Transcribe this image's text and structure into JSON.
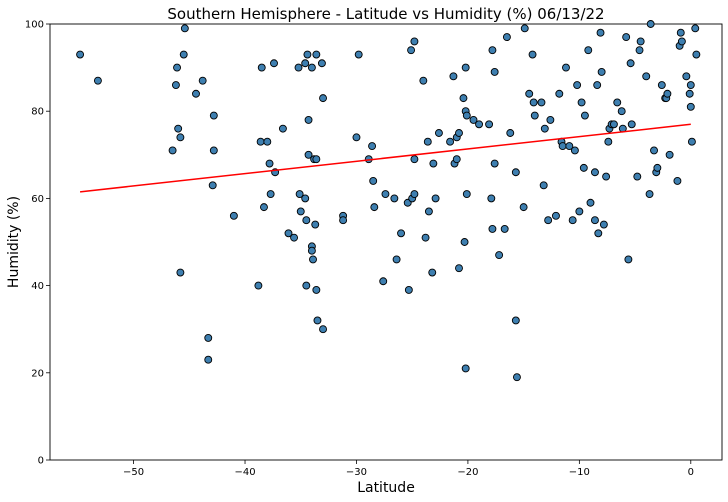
{
  "chart_data": {
    "type": "scatter",
    "title": "Southern Hemisphere - Latitude vs Humidity (%) 06/13/22",
    "xlabel": "Latitude",
    "ylabel": "Humidity (%)",
    "xlim": [
      -57.5,
      2.8
    ],
    "ylim": [
      0,
      100
    ],
    "xticks": [
      -50,
      -40,
      -30,
      -20,
      -10,
      0
    ],
    "yticks": [
      0,
      20,
      40,
      60,
      80,
      100
    ],
    "x_tick_labels": [
      "−50",
      "−40",
      "−30",
      "−20",
      "−10",
      "0"
    ],
    "y_tick_labels": [
      "0",
      "20",
      "40",
      "60",
      "80",
      "100"
    ],
    "grid": false,
    "colors": {
      "marker_fill": "#3e7fb0",
      "marker_edge": "#000000",
      "regression_line": "#ff0000"
    },
    "regression": {
      "x": [
        -54.8,
        0
      ],
      "y": [
        61.5,
        77.0
      ]
    },
    "series": [
      {
        "points": [
          [
            -54.8,
            93
          ],
          [
            -53.2,
            87
          ],
          [
            -46.5,
            71
          ],
          [
            -46.2,
            86
          ],
          [
            -46.1,
            90
          ],
          [
            -46.0,
            76
          ],
          [
            -45.8,
            74
          ],
          [
            -45.8,
            43
          ],
          [
            -45.5,
            93
          ],
          [
            -45.4,
            99
          ],
          [
            -44.4,
            84
          ],
          [
            -43.8,
            87
          ],
          [
            -43.3,
            28
          ],
          [
            -43.3,
            23
          ],
          [
            -42.9,
            63
          ],
          [
            -42.8,
            71
          ],
          [
            -42.8,
            79
          ],
          [
            -41.0,
            56
          ],
          [
            -38.8,
            40
          ],
          [
            -38.6,
            73
          ],
          [
            -38.5,
            90
          ],
          [
            -38.3,
            58
          ],
          [
            -38.0,
            73
          ],
          [
            -37.8,
            68
          ],
          [
            -37.7,
            61
          ],
          [
            -37.4,
            91
          ],
          [
            -37.3,
            66
          ],
          [
            -36.6,
            76
          ],
          [
            -36.1,
            52
          ],
          [
            -35.6,
            51
          ],
          [
            -35.2,
            90
          ],
          [
            -35.1,
            61
          ],
          [
            -35.0,
            57
          ],
          [
            -34.6,
            91
          ],
          [
            -34.6,
            60
          ],
          [
            -34.5,
            55
          ],
          [
            -34.5,
            40
          ],
          [
            -34.4,
            93
          ],
          [
            -34.3,
            78
          ],
          [
            -34.3,
            70
          ],
          [
            -34.0,
            90
          ],
          [
            -34.0,
            49
          ],
          [
            -34.0,
            48
          ],
          [
            -33.9,
            46
          ],
          [
            -33.8,
            69
          ],
          [
            -33.7,
            54
          ],
          [
            -33.6,
            69
          ],
          [
            -33.6,
            93
          ],
          [
            -33.6,
            39
          ],
          [
            -33.5,
            32
          ],
          [
            -33.1,
            91
          ],
          [
            -33.0,
            83
          ],
          [
            -33.0,
            30
          ],
          [
            -31.2,
            56
          ],
          [
            -31.2,
            55
          ],
          [
            -30.0,
            74
          ],
          [
            -29.8,
            93
          ],
          [
            -28.9,
            69
          ],
          [
            -28.6,
            72
          ],
          [
            -28.5,
            64
          ],
          [
            -28.4,
            58
          ],
          [
            -27.6,
            41
          ],
          [
            -27.4,
            61
          ],
          [
            -26.6,
            60
          ],
          [
            -26.4,
            46
          ],
          [
            -26.0,
            52
          ],
          [
            -25.4,
            59
          ],
          [
            -25.3,
            39
          ],
          [
            -25.1,
            94
          ],
          [
            -25.0,
            60
          ],
          [
            -24.8,
            96
          ],
          [
            -24.8,
            61
          ],
          [
            -24.8,
            69
          ],
          [
            -24.0,
            87
          ],
          [
            -23.8,
            51
          ],
          [
            -23.6,
            73
          ],
          [
            -23.5,
            57
          ],
          [
            -23.2,
            43
          ],
          [
            -23.1,
            68
          ],
          [
            -22.9,
            60
          ],
          [
            -22.6,
            75
          ],
          [
            -21.6,
            73
          ],
          [
            -21.3,
            88
          ],
          [
            -21.2,
            68
          ],
          [
            -21.0,
            74
          ],
          [
            -21.0,
            69
          ],
          [
            -20.8,
            75
          ],
          [
            -20.8,
            44
          ],
          [
            -20.4,
            83
          ],
          [
            -20.3,
            50
          ],
          [
            -20.2,
            90
          ],
          [
            -20.2,
            80
          ],
          [
            -20.2,
            21
          ],
          [
            -20.1,
            79
          ],
          [
            -20.1,
            61
          ],
          [
            -19.5,
            78
          ],
          [
            -19.0,
            77
          ],
          [
            -18.1,
            77
          ],
          [
            -17.9,
            60
          ],
          [
            -17.8,
            94
          ],
          [
            -17.8,
            53
          ],
          [
            -17.6,
            68
          ],
          [
            -17.6,
            89
          ],
          [
            -17.2,
            47
          ],
          [
            -16.7,
            53
          ],
          [
            -16.5,
            97
          ],
          [
            -16.2,
            75
          ],
          [
            -15.7,
            66
          ],
          [
            -15.7,
            32
          ],
          [
            -15.6,
            19
          ],
          [
            -15.0,
            58
          ],
          [
            -14.9,
            99
          ],
          [
            -14.5,
            84
          ],
          [
            -14.2,
            93
          ],
          [
            -14.1,
            82
          ],
          [
            -14.0,
            79
          ],
          [
            -13.4,
            82
          ],
          [
            -13.2,
            63
          ],
          [
            -13.1,
            76
          ],
          [
            -12.8,
            55
          ],
          [
            -12.6,
            78
          ],
          [
            -12.1,
            56
          ],
          [
            -11.8,
            84
          ],
          [
            -11.6,
            73
          ],
          [
            -11.5,
            72
          ],
          [
            -11.2,
            90
          ],
          [
            -10.9,
            72
          ],
          [
            -10.6,
            55
          ],
          [
            -10.4,
            71
          ],
          [
            -10.2,
            86
          ],
          [
            -10.0,
            57
          ],
          [
            -9.8,
            82
          ],
          [
            -9.6,
            67
          ],
          [
            -9.5,
            79
          ],
          [
            -9.2,
            94
          ],
          [
            -9.0,
            59
          ],
          [
            -8.6,
            66
          ],
          [
            -8.6,
            55
          ],
          [
            -8.4,
            86
          ],
          [
            -8.3,
            52
          ],
          [
            -8.1,
            98
          ],
          [
            -8.0,
            89
          ],
          [
            -7.8,
            54
          ],
          [
            -7.6,
            65
          ],
          [
            -7.4,
            73
          ],
          [
            -7.3,
            76
          ],
          [
            -7.1,
            77
          ],
          [
            -6.9,
            77
          ],
          [
            -6.6,
            82
          ],
          [
            -6.2,
            80
          ],
          [
            -6.1,
            76
          ],
          [
            -5.8,
            97
          ],
          [
            -5.6,
            46
          ],
          [
            -5.4,
            91
          ],
          [
            -5.3,
            77
          ],
          [
            -4.8,
            65
          ],
          [
            -4.6,
            94
          ],
          [
            -4.5,
            96
          ],
          [
            -4.0,
            88
          ],
          [
            -3.7,
            61
          ],
          [
            -3.6,
            100
          ],
          [
            -3.3,
            71
          ],
          [
            -3.1,
            66
          ],
          [
            -3.0,
            67
          ],
          [
            -2.6,
            86
          ],
          [
            -2.3,
            83
          ],
          [
            -2.2,
            83
          ],
          [
            -2.1,
            84
          ],
          [
            -1.9,
            70
          ],
          [
            -1.2,
            64
          ],
          [
            -1.0,
            95
          ],
          [
            -0.9,
            98
          ],
          [
            -0.8,
            96
          ],
          [
            -0.4,
            88
          ],
          [
            -0.1,
            84
          ],
          [
            0.0,
            81
          ],
          [
            0.0,
            86
          ],
          [
            0.1,
            73
          ],
          [
            0.4,
            99
          ],
          [
            0.5,
            93
          ]
        ]
      }
    ]
  }
}
